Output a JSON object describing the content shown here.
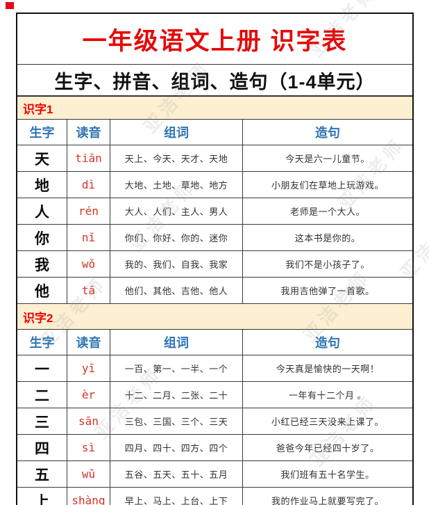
{
  "page": {
    "title": "一年级语文上册 识字表",
    "subtitle": "生字、拼音、组词、造句（1-4单元）",
    "watermark": "亚洁老师"
  },
  "colors": {
    "title_red": "#e60808",
    "section_label_red": "#f00000",
    "band_background": "#fcefd2",
    "header_blue": "#2e74b5",
    "pinyin_red": "#d63426",
    "corner_mark_red": "#e8001d"
  },
  "table": {
    "headers": [
      "生字",
      "读音",
      "组词",
      "造句"
    ],
    "sections": [
      {
        "label": "识字1",
        "rows": [
          {
            "char": "天",
            "pinyin": "tiān",
            "words": "天上、今天、天才、天地",
            "sentence": "今天是六一儿童节。"
          },
          {
            "char": "地",
            "pinyin": "dì",
            "words": "大地、土地、草地、地方",
            "sentence": "小朋友们在草地上玩游戏。"
          },
          {
            "char": "人",
            "pinyin": "rén",
            "words": "大人、人们、主人、男人",
            "sentence": "老师是一个大人。"
          },
          {
            "char": "你",
            "pinyin": "nǐ",
            "words": "你们、你好、你的、迷你",
            "sentence": "这本书是你的。"
          },
          {
            "char": "我",
            "pinyin": "wǒ",
            "words": "我的、我们、自我、我家",
            "sentence": "我们不是小孩子了。"
          },
          {
            "char": "他",
            "pinyin": "tā",
            "words": "他们、其他、吉他、他人",
            "sentence": "我用吉他弹了一首歌。"
          }
        ]
      },
      {
        "label": "识字2",
        "rows": [
          {
            "char": "一",
            "pinyin": "yī",
            "words": "一百、第一、一半、一个",
            "sentence": "今天真是愉快的一天啊！"
          },
          {
            "char": "二",
            "pinyin": "èr",
            "words": "十二、二月、二张、二十",
            "sentence": "一年有十二个月 。"
          },
          {
            "char": "三",
            "pinyin": "sān",
            "words": "三包、三国、三个、三天",
            "sentence": "小红已经三天没来上课了。"
          },
          {
            "char": "四",
            "pinyin": "sì",
            "words": "四月、四十、四方、四个",
            "sentence": "爸爸今年已经四十岁了。"
          },
          {
            "char": "五",
            "pinyin": "wǔ",
            "words": "五谷、五天、五十、五月",
            "sentence": "我们班有五十名学生。"
          },
          {
            "char": "上",
            "pinyin": "shàng",
            "words": "早上、马上、上台、上下",
            "sentence": "我的作业马上就要写完了。"
          }
        ]
      }
    ]
  }
}
